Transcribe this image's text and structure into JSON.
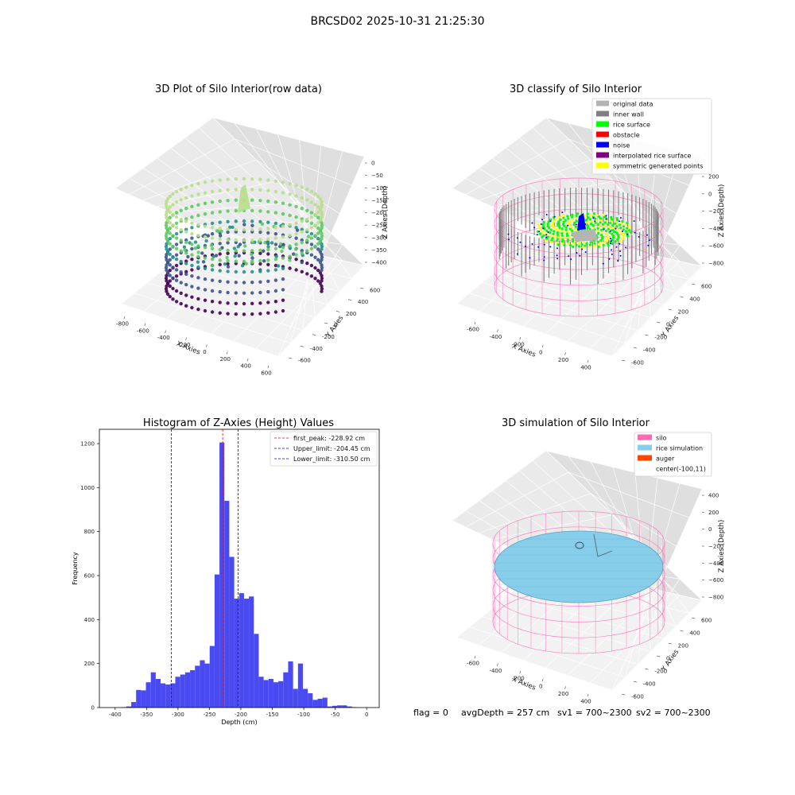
{
  "figure": {
    "suptitle": "BRCSD02 2025-10-31 21:25:30",
    "footer": {
      "flag": "flag = 0",
      "avg_depth": "avgDepth = 257 cm",
      "sv1": "sv1 = 700~2300",
      "sv2": "sv2 = 700~2300"
    }
  },
  "chart_data": [
    {
      "type": "scatter",
      "title": "3D Plot of Silo Interior(row data)",
      "xlabel": "X Axies",
      "ylabel": "Y Axies",
      "zlabel": "Z Axies (Depth)",
      "x_ticks": [
        "-800",
        "-600",
        "-400",
        "-200",
        "0",
        "200",
        "400",
        "600"
      ],
      "y_ticks": [
        "-600",
        "-400",
        "-200",
        "0",
        "200",
        "400",
        "600"
      ],
      "z_ticks": [
        "0",
        "−50",
        "−100",
        "−150",
        "−200",
        "−250",
        "−300",
        "−350",
        "−400"
      ],
      "colormap": [
        "#440154",
        "#3b528b",
        "#21918c",
        "#5ec962",
        "#b8de8a"
      ]
    },
    {
      "type": "scatter",
      "title": "3D classify of Silo Interior",
      "xlabel": "X Axies",
      "ylabel": "Y Axies",
      "zlabel": "Z Axies (Depth)",
      "x_ticks": [
        "-600",
        "-400",
        "-200",
        "0",
        "200",
        "400"
      ],
      "y_ticks": [
        "-600",
        "-400",
        "-200",
        "0",
        "200",
        "400",
        "600"
      ],
      "z_ticks": [
        "200",
        "0",
        "−200",
        "−400",
        "−600",
        "−800"
      ],
      "legend": [
        {
          "label": "original data",
          "color": "#b4b4b4"
        },
        {
          "label": "inner wall",
          "color": "#808080"
        },
        {
          "label": "rice surface",
          "color": "#00ff00"
        },
        {
          "label": "obstacle",
          "color": "#ff0000"
        },
        {
          "label": "noise",
          "color": "#0000ff"
        },
        {
          "label": "interpolated rice surface",
          "color": "#800080"
        },
        {
          "label": "symmetric generated points",
          "color": "#ffff00"
        }
      ],
      "cylinder_color": "#ff69b4"
    },
    {
      "type": "bar",
      "title": "Histogram of Z-Axies (Height) Values",
      "xlabel": "Depth (cm)",
      "ylabel": "Frequency",
      "xlim": [
        -425,
        20
      ],
      "ylim": [
        0,
        1265
      ],
      "x_ticks": [
        -400,
        -350,
        -300,
        -250,
        -200,
        -150,
        -100,
        -50,
        0
      ],
      "y_ticks": [
        0,
        200,
        400,
        600,
        800,
        1000,
        1200
      ],
      "bar_color": "#4a4af2",
      "bin_start": -390,
      "bin_width": 7.8,
      "values": [
        2,
        5,
        25,
        80,
        78,
        115,
        160,
        130,
        110,
        105,
        110,
        140,
        150,
        160,
        170,
        190,
        215,
        200,
        280,
        605,
        1205,
        940,
        685,
        495,
        520,
        495,
        505,
        335,
        140,
        125,
        130,
        115,
        120,
        160,
        210,
        85,
        200,
        85,
        65,
        35,
        40,
        45,
        5,
        8,
        10,
        10,
        5,
        2
      ],
      "vlines": [
        {
          "label": "first_peak: -228.92 cm",
          "value": -228.92,
          "color": "#ff0000"
        },
        {
          "label": "Upper_limit: -204.45 cm",
          "value": -204.45,
          "color": "#0000ff"
        },
        {
          "label": "Lower_limit: -310.50 cm",
          "value": -310.5,
          "color": "#0000ff"
        }
      ]
    },
    {
      "type": "scatter",
      "title": "3D simulation of Silo Interior",
      "xlabel": "X Axies",
      "ylabel": "Y Axies",
      "zlabel": "Z Axies (Depth)",
      "x_ticks": [
        "-600",
        "-400",
        "-200",
        "0",
        "200",
        "400"
      ],
      "y_ticks": [
        "-600",
        "-400",
        "-200",
        "0",
        "200",
        "400",
        "600"
      ],
      "z_ticks": [
        "400",
        "200",
        "0",
        "−200",
        "−400",
        "−600",
        "−800"
      ],
      "legend": [
        {
          "label": "silo",
          "color": "#ff69b4"
        },
        {
          "label": "rice simulation",
          "color": "#87ceeb"
        },
        {
          "label": "auger",
          "color": "#ff4500"
        },
        {
          "label": "center(-100,11)",
          "color": ""
        }
      ]
    }
  ]
}
